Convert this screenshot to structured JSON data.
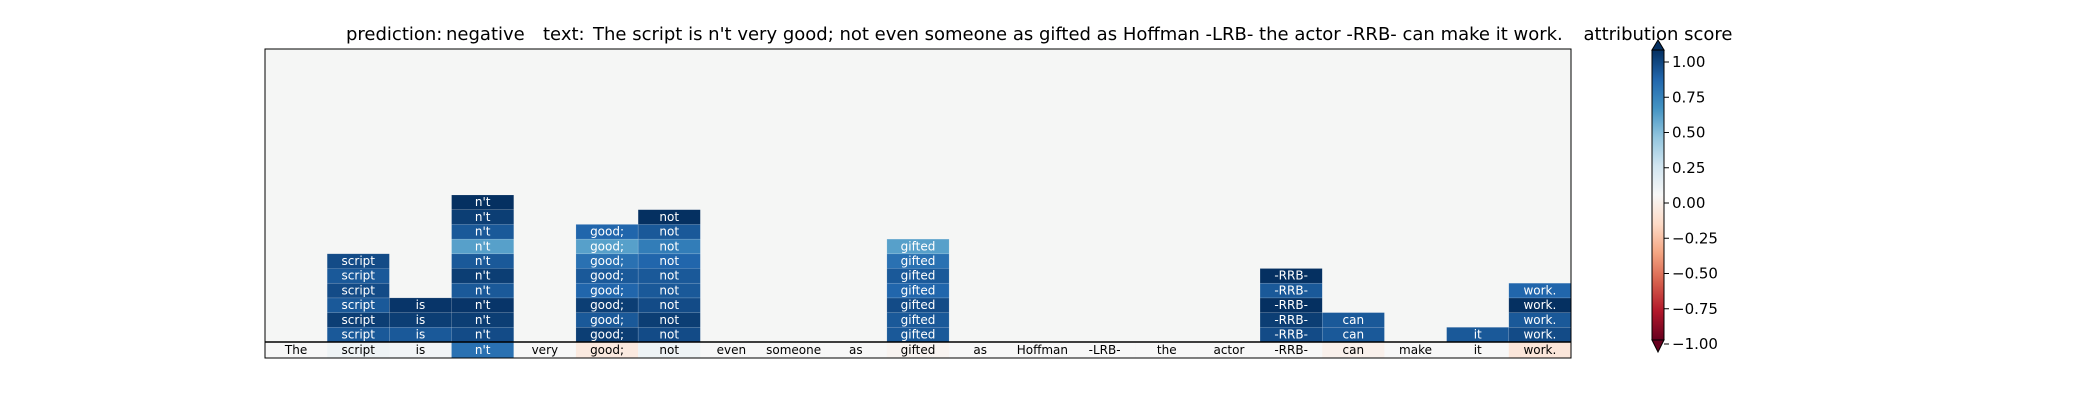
{
  "chart_data": {
    "type": "heatmap",
    "title": {
      "prediction_label": "prediction:",
      "prediction": "negative",
      "text_label": "text:",
      "text": "The script is n't very good; not even someone as gifted as Hoffman -LRB- the actor -RRB- can make it work."
    },
    "colorbar": {
      "title": "attribution score",
      "range": [
        -1.0,
        1.0
      ],
      "ticks": [
        "1.00",
        "0.75",
        "0.50",
        "0.25",
        "0.00",
        "−0.25",
        "−0.50",
        "−0.75",
        "−1.00"
      ],
      "tick_values": [
        1.0,
        0.75,
        0.5,
        0.25,
        0.0,
        -0.25,
        -0.5,
        -0.75,
        -1.0
      ],
      "colormap": "RdBu"
    },
    "tokens": [
      "The",
      "script",
      "is",
      "n't",
      "very",
      "good;",
      "not",
      "even",
      "someone",
      "as",
      "gifted",
      "as",
      "Hoffman",
      "-LRB-",
      "the",
      "actor",
      "-RRB-",
      "can",
      "make",
      "it",
      "work."
    ],
    "token_scores": [
      0.0,
      0.05,
      0.03,
      0.75,
      0.0,
      -0.1,
      0.05,
      0.0,
      0.0,
      0.0,
      -0.03,
      0.0,
      0.0,
      0.0,
      0.0,
      0.0,
      0.0,
      -0.05,
      0.0,
      0.0,
      -0.12
    ],
    "stacks": [
      {
        "col": 1,
        "label": "script",
        "values": [
          0.85,
          0.95,
          0.85,
          0.9,
          0.85,
          0.9
        ]
      },
      {
        "col": 2,
        "label": "is",
        "values": [
          0.85,
          0.95,
          0.98
        ]
      },
      {
        "col": 3,
        "label": "n't",
        "values": [
          0.9,
          0.95,
          0.98,
          0.85,
          0.95,
          0.85,
          0.55,
          0.85,
          0.95,
          1.0
        ]
      },
      {
        "col": 5,
        "label": "good;",
        "values": [
          0.95,
          0.85,
          0.95,
          0.8,
          0.85,
          0.75,
          0.55,
          0.8
        ]
      },
      {
        "col": 6,
        "label": "not",
        "values": [
          0.9,
          0.95,
          0.9,
          0.85,
          0.85,
          0.8,
          0.7,
          0.85,
          1.0
        ]
      },
      {
        "col": 10,
        "label": "gifted",
        "values": [
          0.85,
          0.85,
          0.9,
          0.8,
          0.85,
          0.75,
          0.55
        ]
      },
      {
        "col": 16,
        "label": "-RRB-",
        "values": [
          0.9,
          0.95,
          1.0,
          0.85,
          1.0
        ]
      },
      {
        "col": 17,
        "label": "can",
        "values": [
          0.85,
          0.85
        ]
      },
      {
        "col": 19,
        "label": "it",
        "values": [
          0.85
        ]
      },
      {
        "col": 20,
        "label": "work.",
        "values": [
          0.9,
          0.85,
          1.0,
          0.8
        ]
      }
    ],
    "grid": false
  }
}
